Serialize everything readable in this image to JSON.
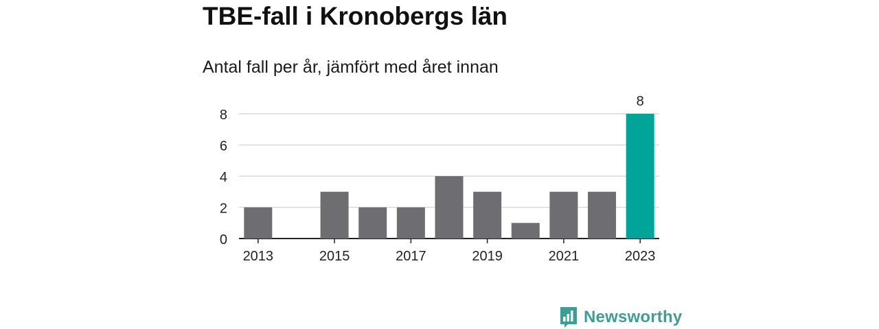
{
  "header": {
    "title": "TBE-fall i Kronobergs län",
    "subtitle": "Antal fall per år, jämfört med året innan"
  },
  "branding": {
    "name": "Newsworthy",
    "logo_icon": "bar-chart-speech-bubble-icon",
    "color": "#3d9e97"
  },
  "chart_data": {
    "type": "bar",
    "title": "TBE-fall i Kronobergs län",
    "subtitle": "Antal fall per år, jämfört med året innan",
    "xlabel": "",
    "ylabel": "",
    "categories": [
      2013,
      2014,
      2015,
      2016,
      2017,
      2018,
      2019,
      2020,
      2021,
      2022,
      2023
    ],
    "values": [
      2,
      0,
      3,
      2,
      2,
      4,
      3,
      1,
      3,
      3,
      8
    ],
    "x_tick_labels": [
      "2013",
      "2015",
      "2017",
      "2019",
      "2021",
      "2023"
    ],
    "y_ticks": [
      0,
      2,
      4,
      6,
      8
    ],
    "ylim": [
      0,
      8
    ],
    "grid": true,
    "colors": {
      "default": "#6e6d72",
      "highlight": "#00a499",
      "grid": "#d9d9d9",
      "axis": "#222222"
    },
    "highlight_category": 2023,
    "data_labels": [
      {
        "category": 2023,
        "label": "8"
      }
    ]
  }
}
